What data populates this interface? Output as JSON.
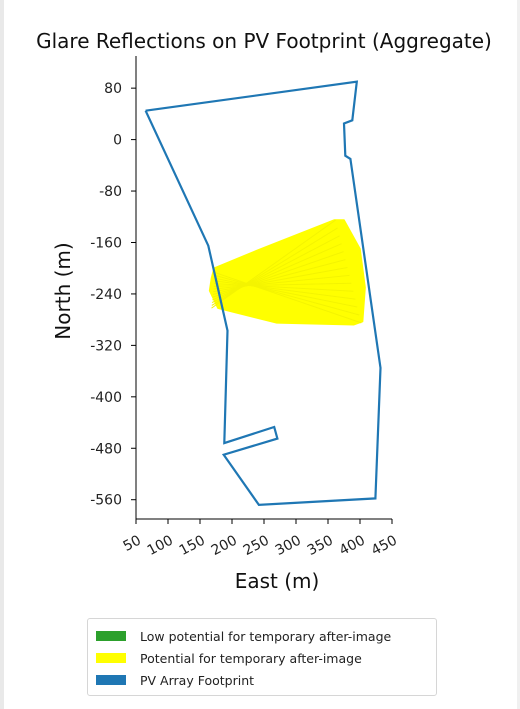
{
  "chart_data": {
    "type": "scatter",
    "title": "Glare Reflections on PV Footprint (Aggregate)",
    "xlabel": "East (m)",
    "ylabel": "North (m)",
    "xlim": [
      50,
      450
    ],
    "ylim": [
      -590,
      130
    ],
    "x_ticks": [
      50,
      100,
      150,
      200,
      250,
      300,
      350,
      400,
      450
    ],
    "y_ticks": [
      80,
      0,
      -80,
      -160,
      -240,
      -320,
      -400,
      -480,
      -560
    ],
    "grid": false,
    "colors": {
      "footprint": "#1f77b4",
      "potential": "#ffff00",
      "low": "#2ca02c"
    },
    "series": [
      {
        "name": "PV Array Footprint",
        "kind": "line",
        "points": [
          [
            65,
            45
          ],
          [
            395,
            90
          ],
          [
            388,
            30
          ],
          [
            375,
            25
          ],
          [
            377,
            -25
          ],
          [
            385,
            -30
          ],
          [
            432,
            -355
          ],
          [
            424,
            -558
          ],
          [
            242,
            -568
          ],
          [
            187,
            -490
          ],
          [
            271,
            -465
          ],
          [
            266,
            -447
          ],
          [
            188,
            -472
          ],
          [
            193,
            -297
          ],
          [
            163,
            -165
          ],
          [
            65,
            45
          ]
        ]
      },
      {
        "name": "Potential for temporary after-image",
        "kind": "region",
        "points": [
          [
            168,
            -215
          ],
          [
            172,
            -200
          ],
          [
            240,
            -172
          ],
          [
            360,
            -125
          ],
          [
            375,
            -125
          ],
          [
            400,
            -170
          ],
          [
            408,
            -230
          ],
          [
            404,
            -283
          ],
          [
            390,
            -288
          ],
          [
            270,
            -285
          ],
          [
            178,
            -262
          ],
          [
            165,
            -235
          ]
        ]
      },
      {
        "name": "Low potential for temporary after-image",
        "kind": "region",
        "points": []
      }
    ],
    "legend": {
      "position": "bottom",
      "entries": [
        {
          "label": "Low potential for temporary after-image",
          "color": "#2ca02c"
        },
        {
          "label": "Potential for temporary after-image",
          "color": "#ffff00"
        },
        {
          "label": "PV Array Footprint",
          "color": "#1f77b4"
        }
      ]
    }
  }
}
